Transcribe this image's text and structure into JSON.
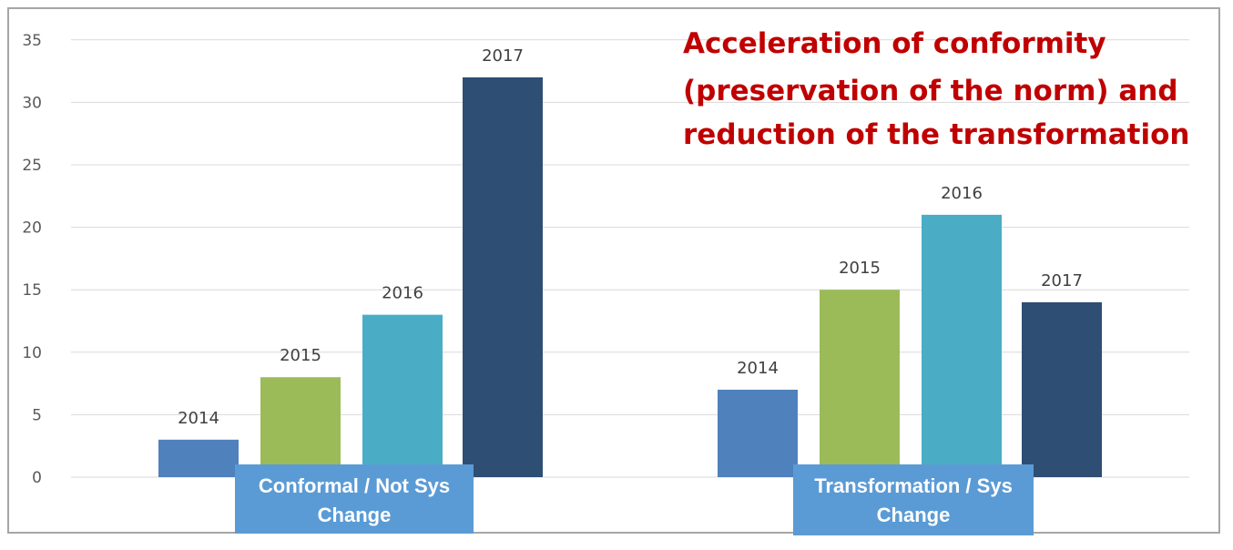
{
  "chart_data": {
    "type": "bar",
    "title_lines": [
      "Acceleration of conformity",
      "(preservation of the norm) and",
      "reduction of the transformation"
    ],
    "xlabel": "",
    "ylabel": "",
    "ylim": [
      0,
      35
    ],
    "yticks": [
      0,
      5,
      10,
      15,
      20,
      25,
      30,
      35
    ],
    "grid": true,
    "groups": [
      {
        "category_lines": [
          "Conformal / Not Sys",
          "Change"
        ],
        "bars": [
          {
            "year": "2014",
            "value": 3
          },
          {
            "year": "2015",
            "value": 8
          },
          {
            "year": "2016",
            "value": 13
          },
          {
            "year": "2017",
            "value": 32
          }
        ]
      },
      {
        "category_lines": [
          "Transformation / Sys",
          "Change"
        ],
        "bars": [
          {
            "year": "2014",
            "value": 7
          },
          {
            "year": "2015",
            "value": 15
          },
          {
            "year": "2016",
            "value": 21
          },
          {
            "year": "2017",
            "value": 14
          }
        ]
      }
    ],
    "colors": {
      "2014": "#4f81bd",
      "2015": "#9bbb59",
      "2016": "#4bacc6",
      "2017": "#2e4e73"
    },
    "category_box_color": "#5b9bd5",
    "title_color": "#c00000"
  }
}
